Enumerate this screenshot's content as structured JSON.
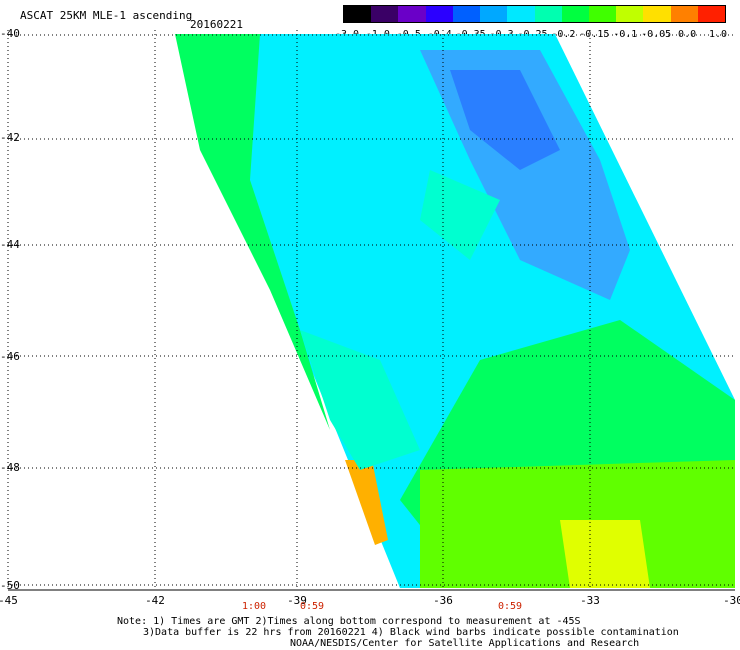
{
  "header": {
    "title": "ASCAT 25KM MLE-1 ascending",
    "date": "20160221"
  },
  "colorbar": {
    "labels": [
      "-3.0",
      "-1.0",
      "-0.5",
      "-0.4",
      "-0.35",
      "-0.3",
      "-0.25",
      "-0.2",
      "-0.15",
      "-0.1",
      "-0.05",
      "0.0",
      "1.0"
    ],
    "colors": [
      "#000000",
      "#3a0066",
      "#6a00c8",
      "#2b00ff",
      "#0060ff",
      "#00a8ff",
      "#00e8ff",
      "#00ffb0",
      "#00ff40",
      "#40ff00",
      "#c0ff00",
      "#ffe000",
      "#ff8000",
      "#ff2000"
    ]
  },
  "map": {
    "x_ticks": [
      "-45",
      "-42",
      "-39",
      "-36",
      "-33",
      "-30"
    ],
    "y_ticks": [
      "-40",
      "-42",
      "-44",
      "-46",
      "-48",
      "-50"
    ],
    "colors": {
      "blue": "#2a7fff",
      "lightblue": "#33aaff",
      "cyan": "#00f0ff",
      "aqua": "#00ffd0",
      "green": "#00ff60",
      "lime": "#60ff00",
      "yellow": "#e0ff00",
      "orange": "#ffb000"
    }
  },
  "times": [
    "1:00",
    "0:59",
    "0:59"
  ],
  "footer": {
    "note1": "Note: 1) Times are GMT 2)Times along bottom correspond to measurement at -45S",
    "note2": "3)Data buffer is 22 hrs from 20160221 4) Black wind barbs indicate possible contamination",
    "credit": "NOAA/NESDIS/Center for Satellite Applications and Research"
  }
}
